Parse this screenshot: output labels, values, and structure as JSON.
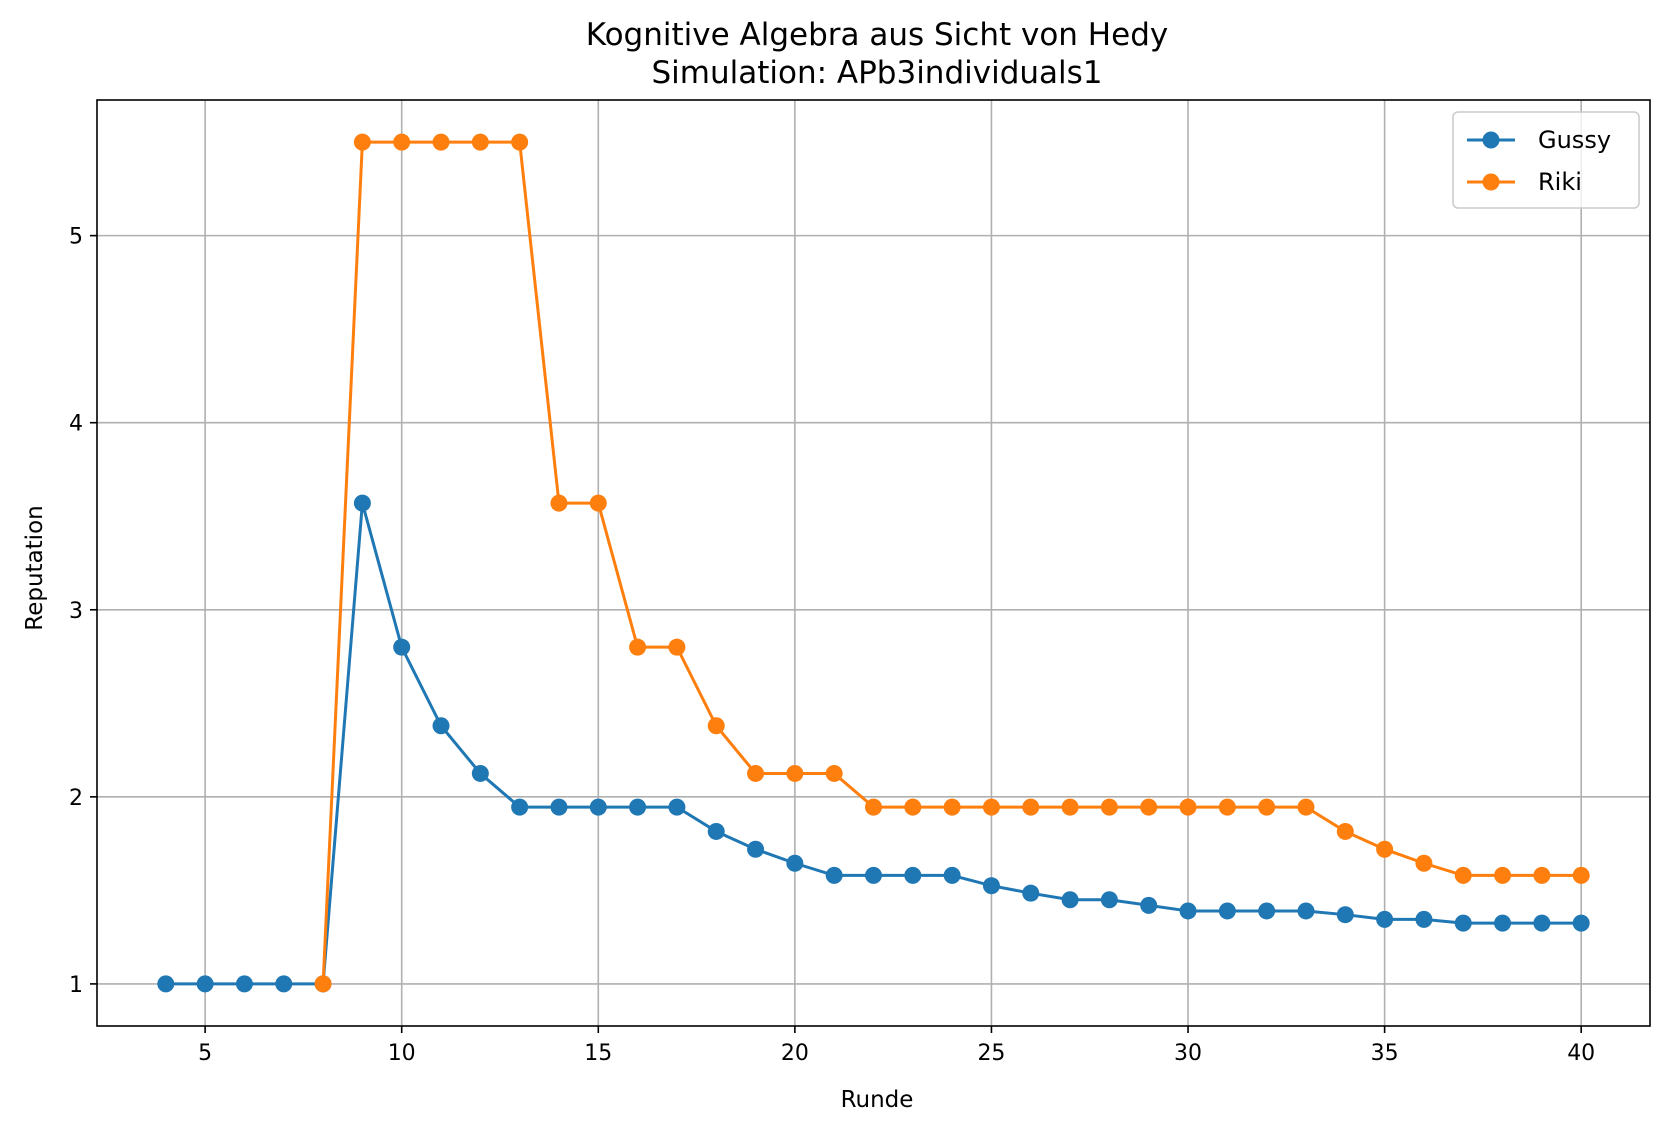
{
  "chart_data": {
    "type": "line",
    "title": "Kognitive Algebra aus Sicht von Hedy",
    "subtitle": "Simulation: APb3individuals1",
    "xlabel": "Runde",
    "ylabel": "Reputation",
    "xlim": [
      2.25,
      41.75
    ],
    "ylim": [
      0.775,
      5.725
    ],
    "xticks": [
      5,
      10,
      15,
      20,
      25,
      30,
      35,
      40
    ],
    "yticks": [
      1,
      2,
      3,
      4,
      5
    ],
    "grid": true,
    "legend_position": "top-right",
    "series": [
      {
        "name": "Gussy",
        "color": "#1f77b4",
        "x": [
          4,
          5,
          6,
          7,
          8,
          9,
          10,
          11,
          12,
          13,
          14,
          15,
          16,
          17,
          18,
          19,
          20,
          21,
          22,
          23,
          24,
          25,
          26,
          27,
          28,
          29,
          30,
          31,
          32,
          33,
          34,
          35,
          36,
          37,
          38,
          39,
          40
        ],
        "y": [
          1,
          1,
          1,
          1,
          1,
          3.57,
          2.8,
          2.38,
          2.125,
          1.945,
          1.945,
          1.945,
          1.945,
          1.945,
          1.815,
          1.72,
          1.645,
          1.58,
          1.58,
          1.58,
          1.58,
          1.525,
          1.485,
          1.45,
          1.45,
          1.42,
          1.39,
          1.39,
          1.39,
          1.39,
          1.37,
          1.345,
          1.345,
          1.325,
          1.325,
          1.325,
          1.325
        ]
      },
      {
        "name": "Riki",
        "color": "#ff7f0e",
        "x": [
          8,
          9,
          10,
          11,
          12,
          13,
          14,
          15,
          16,
          17,
          18,
          19,
          20,
          21,
          22,
          23,
          24,
          25,
          26,
          27,
          28,
          29,
          30,
          31,
          32,
          33,
          34,
          35,
          36,
          37,
          38,
          39,
          40
        ],
        "y": [
          1,
          5.5,
          5.5,
          5.5,
          5.5,
          5.5,
          3.57,
          3.57,
          2.8,
          2.8,
          2.38,
          2.125,
          2.125,
          2.125,
          1.945,
          1.945,
          1.945,
          1.945,
          1.945,
          1.945,
          1.945,
          1.945,
          1.945,
          1.945,
          1.945,
          1.945,
          1.815,
          1.72,
          1.645,
          1.58,
          1.58,
          1.58,
          1.58
        ]
      }
    ]
  }
}
